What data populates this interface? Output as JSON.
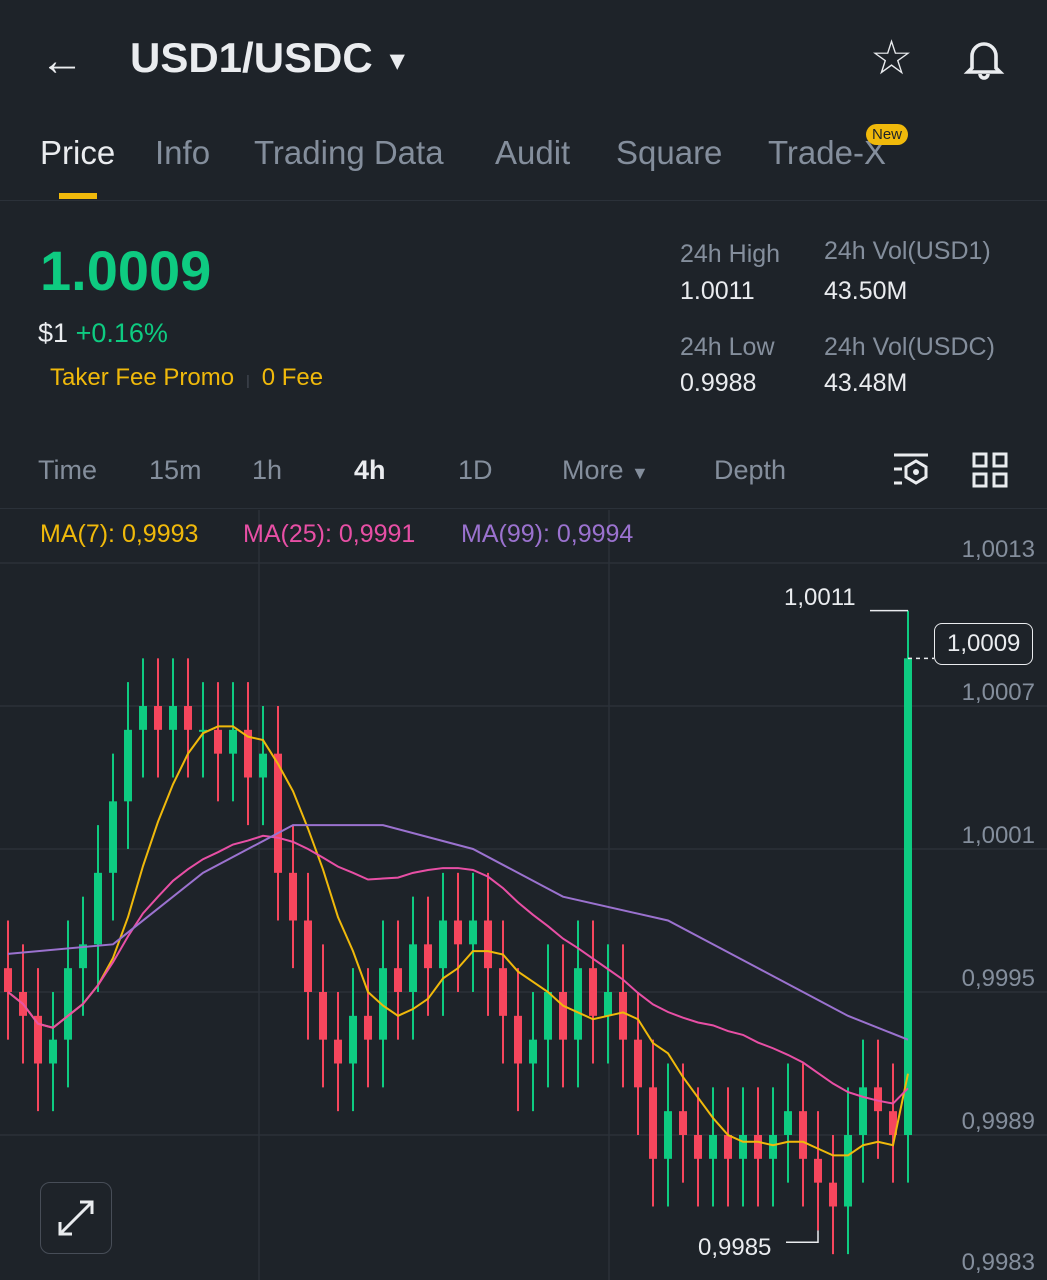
{
  "header": {
    "title": "USD1/USDC"
  },
  "tabs": [
    {
      "label": "Price"
    },
    {
      "label": "Info"
    },
    {
      "label": "Trading Data"
    },
    {
      "label": "Audit"
    },
    {
      "label": "Square"
    },
    {
      "label": "Trade-X"
    }
  ],
  "new_badge": "New",
  "ticker": {
    "last_price": "1.0009",
    "usd_price": "$1",
    "change": "+0.16%",
    "promo_label": "Taker Fee Promo",
    "promo_value": "0 Fee",
    "high_label": "24h High",
    "high": "1.0011",
    "vol1_label": "24h Vol(USD1)",
    "vol1": "43.50M",
    "low_label": "24h Low",
    "low": "0.9988",
    "vol2_label": "24h Vol(USDC)",
    "vol2": "43.48M"
  },
  "timeframes": [
    {
      "label": "Time"
    },
    {
      "label": "15m"
    },
    {
      "label": "1h"
    },
    {
      "label": "4h"
    },
    {
      "label": "1D"
    },
    {
      "label": "More"
    },
    {
      "label": "Depth"
    }
  ],
  "ma_legend": {
    "ma7": "MA(7): 0,9993",
    "ma25": "MA(25): 0,9991",
    "ma99": "MA(99): 0,9994"
  },
  "colors": {
    "up": "#0ecb81",
    "down": "#f6465d",
    "ma7": "#f0b90b",
    "ma25": "#e84fa5",
    "ma99": "#9b72cf",
    "accent": "#f0b90b"
  },
  "chart_data": {
    "type": "candlestick",
    "y_ticks": [
      "1,0013",
      "1,0007",
      "1,0001",
      "0,9995",
      "0,9989",
      "0,9983"
    ],
    "ylim": [
      0.9983,
      1.0013
    ],
    "high_marker": "1,0011",
    "low_marker": "0,9985",
    "current_marker": "1,0009",
    "closes": [
      0.9995,
      0.9994,
      0.9992,
      0.9993,
      0.9996,
      0.9997,
      1.0,
      1.0003,
      1.0006,
      1.0007,
      1.0006,
      1.0007,
      1.0006,
      1.0006,
      1.0005,
      1.0006,
      1.0004,
      1.0005,
      1.0,
      0.9998,
      0.9995,
      0.9993,
      0.9992,
      0.9994,
      0.9993,
      0.9996,
      0.9995,
      0.9997,
      0.9996,
      0.9998,
      0.9997,
      0.9998,
      0.9996,
      0.9994,
      0.9992,
      0.9993,
      0.9995,
      0.9993,
      0.9996,
      0.9994,
      0.9995,
      0.9993,
      0.9991,
      0.9988,
      0.999,
      0.9989,
      0.9988,
      0.9989,
      0.9988,
      0.9989,
      0.9988,
      0.9989,
      0.999,
      0.9988,
      0.9987,
      0.9986,
      0.9989,
      0.9991,
      0.999,
      0.9989,
      1.0009
    ],
    "first_open": 0.9996,
    "last_high": 1.0011,
    "ma99_points": [
      [
        0,
        0.99966
      ],
      [
        7,
        0.9997
      ],
      [
        13,
        1.0
      ],
      [
        19,
        1.0002
      ],
      [
        25,
        1.0002
      ],
      [
        31,
        1.0001
      ],
      [
        37,
        0.9999
      ],
      [
        44,
        0.9998
      ],
      [
        50,
        0.9996
      ],
      [
        56,
        0.9994
      ],
      [
        60,
        0.9993
      ]
    ]
  }
}
